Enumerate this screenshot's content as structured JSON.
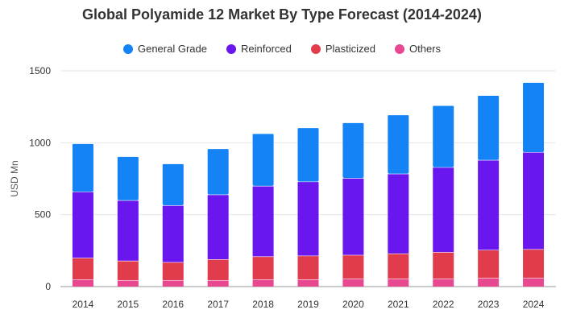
{
  "chart_data": {
    "type": "bar",
    "stacked": true,
    "title": "Global Polyamide 12 Market By Type Forecast (2014-2024)",
    "xlabel": "",
    "ylabel": "USD Mn",
    "ylim": [
      0,
      1500
    ],
    "yticks": [
      0,
      500,
      1000,
      1500
    ],
    "grid": true,
    "legend_position": "top-center",
    "categories": [
      "2014",
      "2015",
      "2016",
      "2017",
      "2018",
      "2019",
      "2020",
      "2021",
      "2022",
      "2023",
      "2024"
    ],
    "series": [
      {
        "name": "Others",
        "color": "#e8488f",
        "values": [
          50,
          45,
          45,
          45,
          50,
          50,
          55,
          55,
          55,
          60,
          60
        ]
      },
      {
        "name": "Plasticized",
        "color": "#e03c4c",
        "values": [
          150,
          135,
          125,
          145,
          160,
          165,
          165,
          175,
          185,
          195,
          200
        ]
      },
      {
        "name": "Reinforced",
        "color": "#6a16ee",
        "values": [
          460,
          420,
          395,
          450,
          490,
          515,
          535,
          555,
          590,
          625,
          675
        ]
      },
      {
        "name": "General Grade",
        "color": "#1483f5",
        "values": [
          335,
          305,
          290,
          320,
          365,
          375,
          385,
          410,
          430,
          450,
          485
        ]
      }
    ]
  }
}
